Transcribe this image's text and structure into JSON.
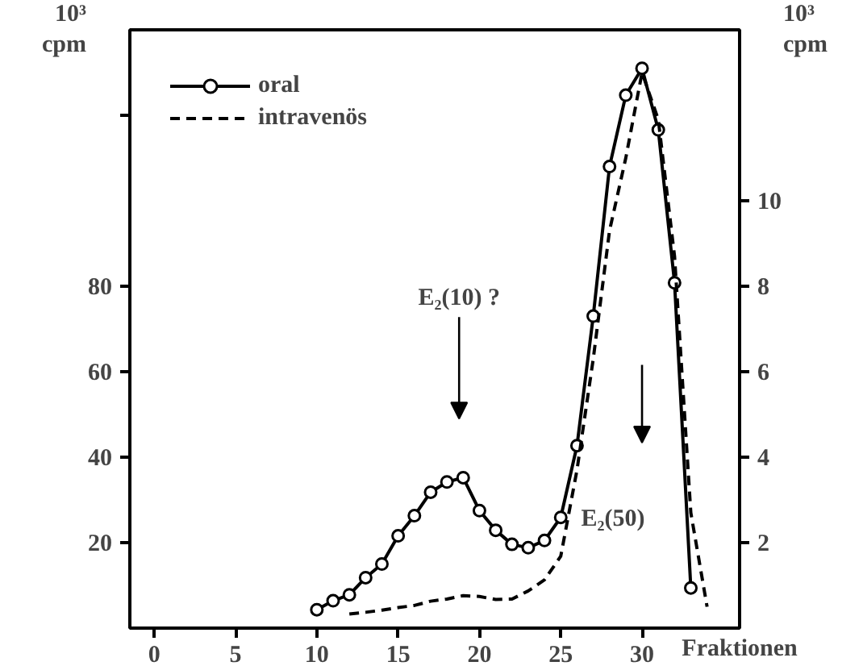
{
  "chart_data": {
    "type": "line",
    "xlabel": "Fraktionen",
    "ylabel": "10³ cpm",
    "y2label": "10³ cpm",
    "xlim": [
      -1.5,
      36
    ],
    "xticks": [
      0,
      5,
      10,
      15,
      20,
      25,
      30
    ],
    "ylim": [
      0,
      140
    ],
    "yticks": [
      20,
      40,
      60,
      80,
      {
        "value": 120,
        "label": null
      }
    ],
    "y2lim": [
      0,
      14
    ],
    "y2ticks": [
      2,
      4,
      6,
      8,
      10
    ],
    "legend": "top left",
    "grid": false,
    "series": [
      {
        "name": "oral",
        "color": "#000000",
        "marker": "circle",
        "line_style": "solid",
        "x": [
          10,
          11,
          12,
          13,
          14,
          15,
          16,
          17,
          18,
          19,
          20,
          21,
          22,
          23,
          24,
          25,
          26,
          27,
          28,
          29,
          30,
          31,
          32,
          33
        ],
        "values": [
          4.3,
          6.4,
          7.8,
          11.8,
          15,
          21.6,
          26.3,
          31.8,
          34.2,
          35.2,
          27.5,
          22.9,
          19.6,
          18.8,
          20.5,
          25.9,
          42.7,
          73,
          108,
          124.7,
          131,
          116.6,
          80.8,
          9.4
        ]
      },
      {
        "name": "intravenös",
        "color": "#000000",
        "marker": "none",
        "line_style": "dashed",
        "axis": "y2",
        "x": [
          12,
          13,
          14,
          15,
          16,
          17,
          18,
          19,
          20,
          21,
          22,
          23,
          24,
          25,
          26,
          27,
          28,
          29,
          30,
          31,
          32,
          33,
          34
        ],
        "values": [
          0.33,
          0.37,
          0.42,
          0.48,
          0.53,
          0.63,
          0.68,
          0.76,
          0.74,
          0.67,
          0.68,
          0.87,
          1.13,
          1.68,
          3.7,
          6.3,
          9.3,
          11.0,
          13.0,
          11.9,
          8.7,
          2.7,
          0.5
        ]
      }
    ],
    "annotations": [
      "E₂(10) ?",
      "E₂(50)"
    ]
  }
}
